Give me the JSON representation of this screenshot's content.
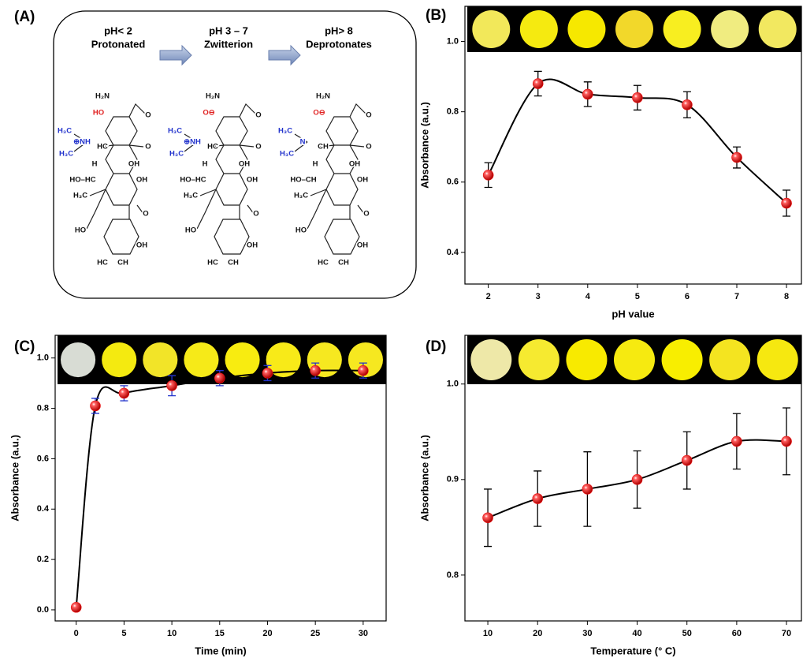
{
  "diagram": {
    "panel": "(A)",
    "steps": [
      {
        "ph": "pH< 2",
        "state": "Protonated",
        "atoms": [
          "H₂N",
          "O",
          "HO",
          "H₃C",
          "⊕NH",
          "HC",
          "O",
          "H₃C",
          "H",
          "OH",
          "HO–HC",
          "OH",
          "H₃C",
          "O",
          "HO",
          "OH",
          "HC",
          "CH"
        ]
      },
      {
        "ph": "pH 3 – 7",
        "state": "Zwitterion",
        "atoms": [
          "H₂N",
          "O",
          "O⊖",
          "H₃C",
          "⊕NH",
          "HC",
          "O",
          "H₃C",
          "H",
          "OH",
          "HO–HC",
          "OH",
          "H₃C",
          "O",
          "HO",
          "OH",
          "HC",
          "CH"
        ]
      },
      {
        "ph": "pH> 8",
        "state": "Deprotonates",
        "atoms": [
          "H₂N",
          "O",
          "O⊖",
          "H₃C",
          "N",
          "CH",
          "O",
          "H₃C",
          "H",
          "OH",
          "HO–CH",
          "OH",
          "H₃C",
          "O",
          "HO",
          "OH",
          "HC",
          "CH"
        ]
      }
    ]
  },
  "chart_data": [
    {
      "type": "line",
      "panel": "(B)",
      "x_label": "pH value",
      "y_label": "Absorbance (a.u.)",
      "x": [
        2,
        3,
        4,
        5,
        6,
        7,
        8
      ],
      "values": [
        0.62,
        0.88,
        0.85,
        0.84,
        0.82,
        0.67,
        0.54
      ],
      "errors": [
        0.035,
        0.035,
        0.035,
        0.035,
        0.037,
        0.03,
        0.037
      ],
      "color": "#ee1111",
      "error_color": "#000000",
      "swatch_colors": [
        "#f2e85a",
        "#f5ea10",
        "#f6e800",
        "#f2d82a",
        "#f8ee20",
        "#f0ec80",
        "#f2e860"
      ],
      "xlim": [
        1.53,
        8.3
      ],
      "xticks": [
        2,
        3,
        4,
        5,
        6,
        7,
        8
      ],
      "ylim": [
        0.31,
        1.1
      ],
      "yticks": [
        0.4,
        0.6,
        0.8,
        {
          "value": 1,
          "label": "1.0"
        }
      ]
    },
    {
      "type": "line",
      "panel": "(C)",
      "x_label": "Time (min)",
      "y_label": "Absorbance (a.u.)",
      "x": [
        0,
        2,
        5,
        10,
        15,
        20,
        25,
        30
      ],
      "values": [
        0.01,
        0.81,
        0.86,
        0.89,
        0.92,
        0.94,
        0.95,
        0.95
      ],
      "errors": [
        0.01,
        0.03,
        0.03,
        0.04,
        0.03,
        0.03,
        0.03,
        0.03
      ],
      "color": "#ee1111",
      "error_color": "#2233cc",
      "swatch_colors": [
        "#d8dcd4",
        "#f4ea10",
        "#f2e428",
        "#f6ea18",
        "#f8ec10",
        "#f8ea18",
        "#f6e820",
        "#f6e820"
      ],
      "xlim": [
        -2.2,
        32.4
      ],
      "xticks": [
        0,
        5,
        10,
        15,
        20,
        25,
        30
      ],
      "ylim": [
        -0.044,
        1.09
      ],
      "yticks": [
        {
          "value": 0,
          "label": "0.0"
        },
        0.2,
        0.4,
        0.6,
        0.8,
        {
          "value": 1,
          "label": "1.0"
        }
      ]
    },
    {
      "type": "line",
      "panel": "(D)",
      "x_label": "Temperature (° C)",
      "y_label": "Absorbance (a.u.)",
      "x": [
        10,
        20,
        30,
        40,
        50,
        60,
        70
      ],
      "values": [
        0.86,
        0.88,
        0.89,
        0.9,
        0.92,
        0.94,
        0.94
      ],
      "errors": [
        0.03,
        0.029,
        0.039,
        0.03,
        0.03,
        0.029,
        0.035
      ],
      "color": "#ee1111",
      "error_color": "#000000",
      "swatch_colors": [
        "#eee8a8",
        "#f6ea30",
        "#f8ea00",
        "#f6ea10",
        "#f8ee00",
        "#f4e420",
        "#f6e810"
      ],
      "xlim": [
        5.4,
        73
      ],
      "xticks": [
        10,
        20,
        30,
        40,
        50,
        60,
        70
      ],
      "ylim": [
        0.752,
        1.051
      ],
      "yticks": [
        0.8,
        0.9,
        {
          "value": 1,
          "label": "1.0"
        }
      ]
    }
  ]
}
